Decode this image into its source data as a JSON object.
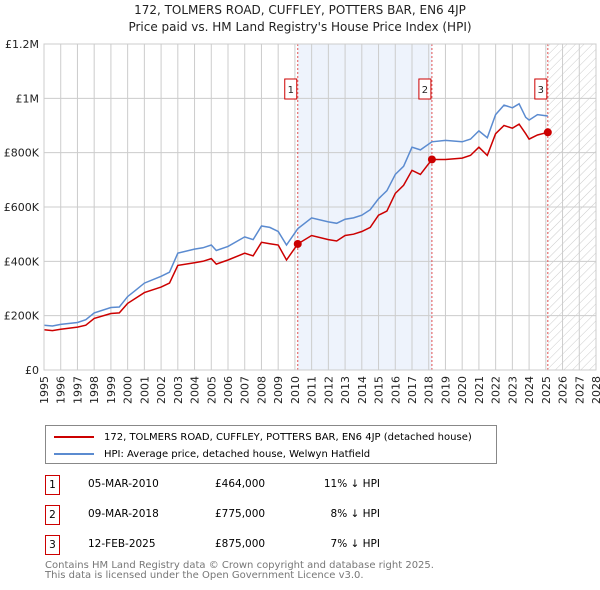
{
  "chart_data": {
    "type": "line",
    "title": "172, TOLMERS ROAD, CUFFLEY, POTTERS BAR, EN6 4JP",
    "subtitle": "Price paid vs. HM Land Registry's House Price Index (HPI)",
    "xlim": [
      1995,
      2028
    ],
    "ylim": [
      0,
      1200000
    ],
    "x_ticks": [
      "1995",
      "1996",
      "1997",
      "1998",
      "1999",
      "2000",
      "2001",
      "2002",
      "2003",
      "2004",
      "2005",
      "2006",
      "2007",
      "2008",
      "2009",
      "2010",
      "2011",
      "2012",
      "2013",
      "2014",
      "2015",
      "2016",
      "2017",
      "2018",
      "2019",
      "2020",
      "2021",
      "2022",
      "2023",
      "2024",
      "2025",
      "2026",
      "2027",
      "2028"
    ],
    "y_ticks": [
      {
        "v": 0,
        "label": "£0"
      },
      {
        "v": 200000,
        "label": "£200K"
      },
      {
        "v": 400000,
        "label": "£400K"
      },
      {
        "v": 600000,
        "label": "£600K"
      },
      {
        "v": 800000,
        "label": "£800K"
      },
      {
        "v": 1000000,
        "label": "£1M"
      },
      {
        "v": 1200000,
        "label": "£1.2M"
      }
    ],
    "grid": true,
    "shaded_range": [
      2010.17,
      2018.19
    ],
    "hatched_range": [
      2025.12,
      2028
    ],
    "series": [
      {
        "name": "172, TOLMERS ROAD, CUFFLEY, POTTERS BAR, EN6 4JP (detached house)",
        "color": "#cc0000",
        "x": [
          1995,
          1995.5,
          1996,
          1997,
          1997.5,
          1998,
          1999,
          1999.5,
          2000,
          2000.5,
          2001,
          2002,
          2002.5,
          2003,
          2004,
          2004.5,
          2005,
          2005.3,
          2006,
          2007,
          2007.5,
          2008,
          2008.5,
          2009,
          2009.5,
          2010.17,
          2011,
          2012,
          2012.5,
          2013,
          2013.5,
          2014,
          2014.5,
          2015,
          2015.5,
          2016,
          2016.5,
          2017,
          2017.5,
          2018.19,
          2019,
          2020,
          2020.5,
          2021,
          2021.5,
          2022,
          2022.5,
          2023,
          2023.4,
          2023.8,
          2024,
          2024.5,
          2025.12
        ],
        "y": [
          148000,
          145000,
          150000,
          158000,
          165000,
          190000,
          208000,
          210000,
          245000,
          265000,
          285000,
          305000,
          320000,
          385000,
          395000,
          400000,
          410000,
          390000,
          405000,
          430000,
          420000,
          470000,
          465000,
          460000,
          405000,
          464000,
          495000,
          480000,
          475000,
          495000,
          500000,
          510000,
          525000,
          570000,
          585000,
          650000,
          680000,
          735000,
          720000,
          775000,
          775000,
          780000,
          790000,
          820000,
          790000,
          870000,
          900000,
          890000,
          905000,
          870000,
          850000,
          865000,
          875000
        ]
      },
      {
        "name": "HPI: Average price, detached house, Welwyn Hatfield",
        "color": "#5b8bd0",
        "x": [
          1995,
          1995.5,
          1996,
          1997,
          1997.5,
          1998,
          1999,
          1999.5,
          2000,
          2000.5,
          2001,
          2002,
          2002.5,
          2003,
          2004,
          2004.5,
          2005,
          2005.3,
          2006,
          2007,
          2007.5,
          2008,
          2008.5,
          2009,
          2009.5,
          2010.17,
          2011,
          2012,
          2012.5,
          2013,
          2013.5,
          2014,
          2014.5,
          2015,
          2015.5,
          2016,
          2016.5,
          2017,
          2017.5,
          2018.19,
          2019,
          2020,
          2020.5,
          2021,
          2021.5,
          2022,
          2022.5,
          2023,
          2023.4,
          2023.8,
          2024,
          2024.5,
          2025.12
        ],
        "y": [
          165000,
          162000,
          168000,
          175000,
          185000,
          210000,
          230000,
          232000,
          270000,
          295000,
          320000,
          345000,
          360000,
          430000,
          445000,
          450000,
          460000,
          440000,
          455000,
          490000,
          480000,
          530000,
          525000,
          510000,
          460000,
          520000,
          560000,
          545000,
          540000,
          555000,
          560000,
          570000,
          590000,
          630000,
          660000,
          720000,
          750000,
          820000,
          810000,
          840000,
          845000,
          840000,
          850000,
          880000,
          855000,
          940000,
          975000,
          965000,
          980000,
          930000,
          920000,
          940000,
          935000
        ]
      }
    ],
    "annotations": [
      {
        "label": "1",
        "x": 2010.17,
        "y": 464000
      },
      {
        "label": "2",
        "x": 2018.19,
        "y": 775000
      },
      {
        "label": "3",
        "x": 2025.12,
        "y": 875000
      }
    ],
    "legend_position": "below"
  },
  "transactions": [
    {
      "num": "1",
      "date": "05-MAR-2010",
      "price": "£464,000",
      "pct": "11% ↓ HPI"
    },
    {
      "num": "2",
      "date": "09-MAR-2018",
      "price": "£775,000",
      "pct": "8% ↓ HPI"
    },
    {
      "num": "3",
      "date": "12-FEB-2025",
      "price": "£875,000",
      "pct": "7% ↓ HPI"
    }
  ],
  "footer": {
    "line1": "Contains HM Land Registry data © Crown copyright and database right 2025.",
    "line2": "This data is licensed under the Open Government Licence v3.0."
  }
}
